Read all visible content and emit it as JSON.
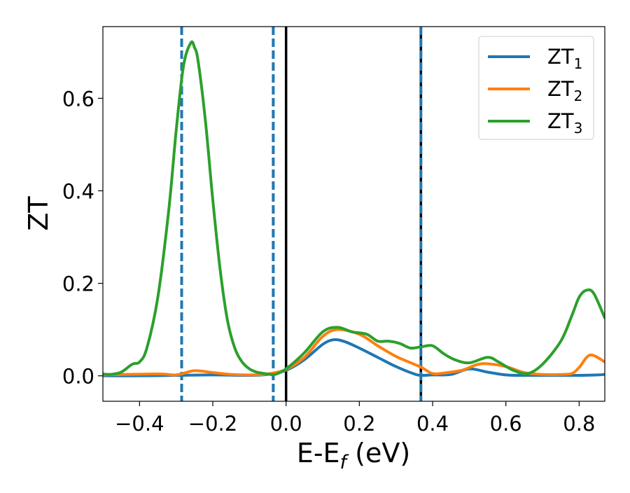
{
  "chart_data": {
    "type": "line",
    "xlabel": "E-E",
    "xlabel_sub": "f",
    "xlabel_unit": " (eV)",
    "ylabel": "ZT",
    "xlim": [
      -0.5,
      0.87
    ],
    "ylim": [
      -0.055,
      0.755
    ],
    "xticks": [
      -0.4,
      -0.2,
      0.0,
      0.2,
      0.4,
      0.6,
      0.8
    ],
    "xtick_labels": [
      "−0.4",
      "−0.2",
      "0.0",
      "0.2",
      "0.4",
      "0.6",
      "0.8"
    ],
    "yticks": [
      0.0,
      0.2,
      0.4,
      0.6
    ],
    "ytick_labels": [
      "0.0",
      "0.2",
      "0.4",
      "0.6"
    ],
    "legend_position": "top-right",
    "grid": false,
    "vlines": [
      {
        "x": -0.285,
        "style": "dashed",
        "color": "#1f77b4"
      },
      {
        "x": -0.035,
        "style": "dashed",
        "color": "#1f77b4"
      },
      {
        "x": 0.0,
        "style": "solid",
        "color": "#000000"
      },
      {
        "x": 0.368,
        "style": "solid",
        "color": "#000000"
      },
      {
        "x": 0.368,
        "style": "dashed",
        "color": "#1f77b4"
      }
    ],
    "series": [
      {
        "name": "ZT",
        "sub": "1",
        "color": "#1f77b4",
        "x": [
          -0.5,
          -0.4,
          -0.3,
          -0.2,
          -0.1,
          -0.05,
          0.0,
          0.05,
          0.1,
          0.13,
          0.16,
          0.2,
          0.25,
          0.3,
          0.35,
          0.37,
          0.4,
          0.45,
          0.5,
          0.55,
          0.6,
          0.65,
          0.7,
          0.75,
          0.8,
          0.85,
          0.87
        ],
        "y": [
          0.0,
          0.0,
          0.001,
          0.002,
          0.001,
          0.003,
          0.012,
          0.035,
          0.068,
          0.078,
          0.074,
          0.06,
          0.04,
          0.02,
          0.004,
          0.001,
          0.002,
          0.003,
          0.015,
          0.008,
          0.002,
          0.001,
          0.001,
          0.001,
          0.001,
          0.002,
          0.003
        ]
      },
      {
        "name": "ZT",
        "sub": "2",
        "color": "#ff7f0e",
        "x": [
          -0.5,
          -0.35,
          -0.3,
          -0.25,
          -0.2,
          -0.15,
          -0.1,
          -0.05,
          0.0,
          0.05,
          0.1,
          0.14,
          0.2,
          0.25,
          0.3,
          0.35,
          0.37,
          0.4,
          0.43,
          0.48,
          0.52,
          0.55,
          0.6,
          0.65,
          0.7,
          0.75,
          0.78,
          0.8,
          0.83,
          0.87
        ],
        "y": [
          0.002,
          0.004,
          0.002,
          0.011,
          0.007,
          0.003,
          0.002,
          0.004,
          0.014,
          0.04,
          0.085,
          0.1,
          0.09,
          0.065,
          0.042,
          0.025,
          0.018,
          0.005,
          0.006,
          0.012,
          0.024,
          0.026,
          0.02,
          0.007,
          0.003,
          0.003,
          0.005,
          0.018,
          0.045,
          0.03
        ]
      },
      {
        "name": "ZT",
        "sub": "3",
        "color": "#2ca02c",
        "x": [
          -0.5,
          -0.48,
          -0.45,
          -0.42,
          -0.4,
          -0.38,
          -0.35,
          -0.32,
          -0.3,
          -0.28,
          -0.26,
          -0.25,
          -0.24,
          -0.22,
          -0.2,
          -0.18,
          -0.16,
          -0.14,
          -0.12,
          -0.1,
          -0.08,
          -0.05,
          -0.03,
          0.0,
          0.05,
          0.1,
          0.14,
          0.18,
          0.22,
          0.25,
          0.28,
          0.31,
          0.34,
          0.37,
          0.4,
          0.43,
          0.46,
          0.5,
          0.55,
          0.58,
          0.62,
          0.66,
          0.7,
          0.75,
          0.78,
          0.8,
          0.82,
          0.84,
          0.87
        ],
        "y": [
          0.004,
          0.003,
          0.008,
          0.025,
          0.03,
          0.06,
          0.17,
          0.36,
          0.53,
          0.67,
          0.72,
          0.71,
          0.68,
          0.55,
          0.38,
          0.23,
          0.12,
          0.06,
          0.03,
          0.015,
          0.008,
          0.004,
          0.003,
          0.015,
          0.05,
          0.095,
          0.105,
          0.095,
          0.09,
          0.075,
          0.075,
          0.07,
          0.06,
          0.063,
          0.065,
          0.048,
          0.035,
          0.028,
          0.04,
          0.03,
          0.012,
          0.005,
          0.025,
          0.075,
          0.13,
          0.17,
          0.185,
          0.178,
          0.125
        ]
      }
    ]
  }
}
